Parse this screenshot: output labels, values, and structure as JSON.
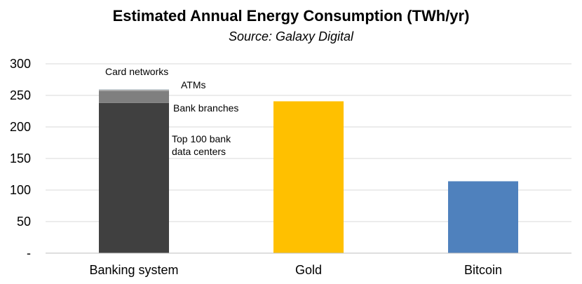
{
  "chart_data": {
    "type": "bar",
    "title": "Estimated Annual Energy Consumption (TWh/yr)",
    "subtitle": "Source: Galaxy Digital",
    "xlabel": "",
    "ylabel": "",
    "ylim": [
      0,
      300
    ],
    "yticks": [
      {
        "value": 0,
        "label": "-"
      },
      {
        "value": 50,
        "label": "50"
      },
      {
        "value": 100,
        "label": "100"
      },
      {
        "value": 150,
        "label": "150"
      },
      {
        "value": 200,
        "label": "200"
      },
      {
        "value": 250,
        "label": "250"
      },
      {
        "value": 300,
        "label": "300"
      }
    ],
    "grid": true,
    "categories": [
      "Banking system",
      "Gold",
      "Bitcoin"
    ],
    "stacked_bar": {
      "category": "Banking system",
      "segments": [
        {
          "name": "Top 100 bank data centers",
          "label_lines": [
            "Top 100 bank",
            "data centers"
          ],
          "value": 238,
          "color": "#404040"
        },
        {
          "name": "Bank branches",
          "label_lines": [
            "Bank branches"
          ],
          "value": 19,
          "color": "#7f7f7f"
        },
        {
          "name": "ATMs",
          "label_lines": [
            "ATMs"
          ],
          "value": 2.3,
          "color": "#a6a6a6"
        },
        {
          "name": "Card networks",
          "label_lines": [
            "Card networks"
          ],
          "value": 0.4,
          "color": "#c9d9e6"
        }
      ]
    },
    "bars": [
      {
        "category": "Gold",
        "value": 240.6,
        "color": "#ffc000"
      },
      {
        "category": "Bitcoin",
        "value": 113.9,
        "color": "#4f81bd"
      }
    ]
  }
}
